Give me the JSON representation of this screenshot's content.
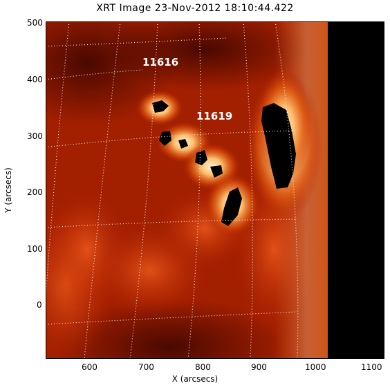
{
  "title": "XRT Image 23-Nov-2012 18:10:44.422",
  "xlabel": "X (arcsecs)",
  "ylabel": "Y (arcsecs)",
  "x_ticks": [
    "600",
    "700",
    "800",
    "900",
    "1000",
    "1100"
  ],
  "y_ticks": [
    "500",
    "400",
    "300",
    "200",
    "100",
    "0"
  ],
  "regions": {
    "region_a": "11616",
    "region_b": "11619"
  },
  "colors": {
    "background": "#ffffff",
    "sun_dark": "#4a0500",
    "sun_mid": "#b52400",
    "sun_bright": "#ffb860",
    "sun_core": "#fff2d8",
    "space": "#000000",
    "grid": "#ffffff"
  }
}
